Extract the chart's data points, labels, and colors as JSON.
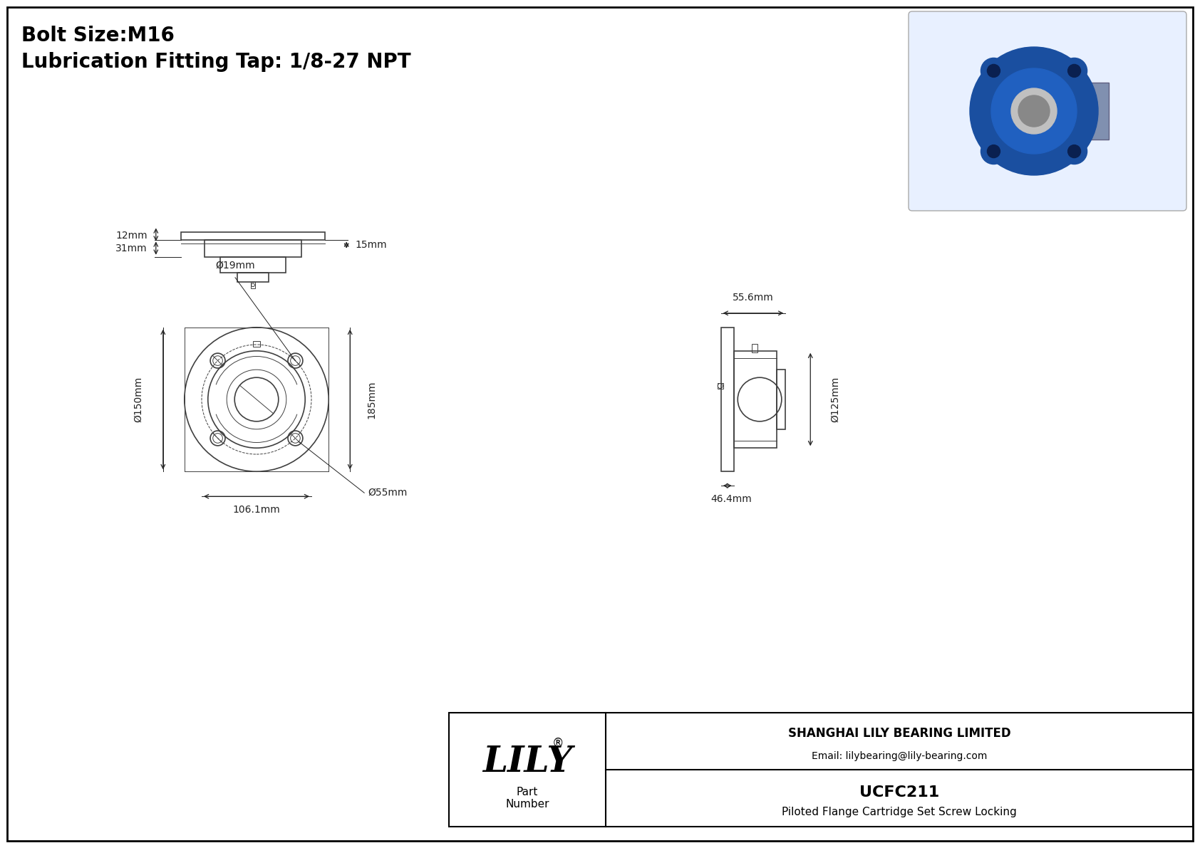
{
  "title_line1": "Bolt Size:M16",
  "title_line2": "Lubrication Fitting Tap: 1/8-27 NPT",
  "bg_color": "#ffffff",
  "border_color": "#000000",
  "line_color": "#404040",
  "dim_color": "#222222",
  "dim_font_size": 10,
  "title_font_size": 18,
  "dims": {
    "d19": "Ø19mm",
    "d150": "Ø150mm",
    "d185": "185mm",
    "d106": "106.1mm",
    "d55": "Ø55mm",
    "d55_6": "55.6mm",
    "d125": "Ø125mm",
    "d46": "46.4mm",
    "d31": "31mm",
    "d15": "15mm",
    "d12": "12mm"
  },
  "company": "SHANGHAI LILY BEARING LIMITED",
  "email": "Email: lilybearing@lily-bearing.com",
  "part_number": "UCFC211",
  "description": "Piloted Flange Cartridge Set Screw Locking",
  "lily_text": "LILY",
  "registered": "®"
}
